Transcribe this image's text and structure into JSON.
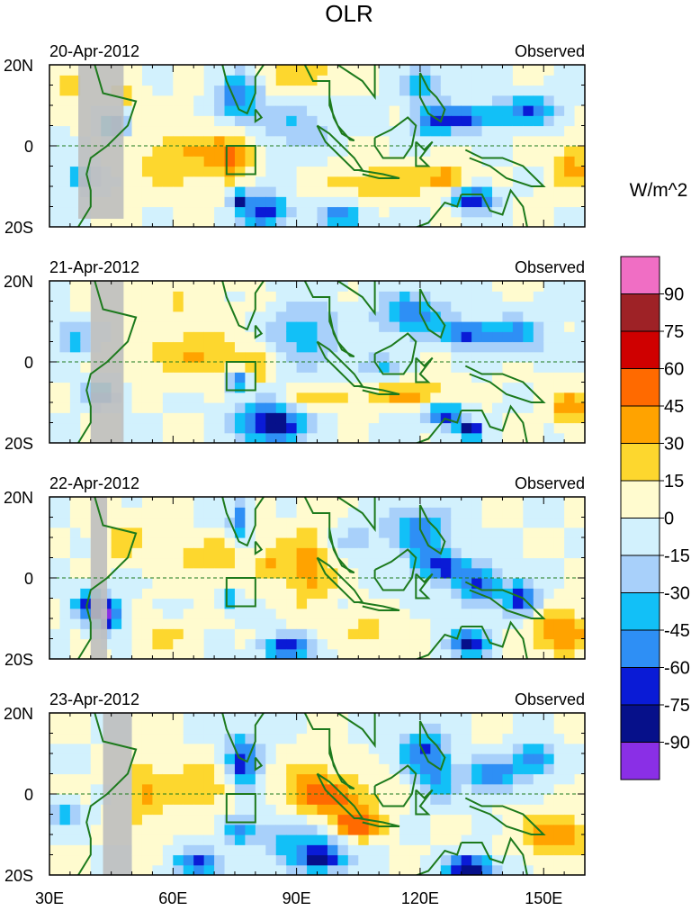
{
  "chart_data": {
    "type": "heatmap",
    "title": "OLR",
    "variable_label": "Observed",
    "units": "W/m^2",
    "region": {
      "lon": [
        30,
        160
      ],
      "lat": [
        -20,
        20
      ]
    },
    "x_ticks": [
      30,
      60,
      90,
      120,
      150
    ],
    "x_tick_labels": [
      "30E",
      "60E",
      "90E",
      "120E",
      "150E"
    ],
    "y_ticks": [
      20,
      0,
      -20
    ],
    "y_tick_labels": [
      "20N",
      "0",
      "20S"
    ],
    "panels": [
      {
        "date": "20-Apr-2012",
        "label": "Observed"
      },
      {
        "date": "21-Apr-2012",
        "label": "Observed"
      },
      {
        "date": "22-Apr-2012",
        "label": "Observed"
      },
      {
        "date": "23-Apr-2012",
        "label": "Observed"
      }
    ],
    "colorbar": {
      "levels": [
        -90,
        -75,
        -60,
        -45,
        -30,
        -15,
        0,
        15,
        30,
        45,
        60,
        75,
        90
      ],
      "labels": [
        "90",
        "75",
        "60",
        "45",
        "30",
        "15",
        "0",
        "-15",
        "-30",
        "-45",
        "-60",
        "-75",
        "-90"
      ],
      "colors_top_to_bottom": [
        "#f06ec4",
        "#9e2226",
        "#cf0000",
        "#ff6a00",
        "#ffa300",
        "#fdd72e",
        "#fffbcf",
        "#d2f1fd",
        "#a8d0fa",
        "#12c0f7",
        "#2e8ff5",
        "#0a1bd6",
        "#06108a",
        "#8a2fe6"
      ]
    },
    "box": {
      "lon": [
        73,
        80
      ],
      "lat": [
        -7,
        0
      ]
    }
  },
  "colors": {
    "coast": "#1d7a1d",
    "land_mask": "#bebebe"
  }
}
